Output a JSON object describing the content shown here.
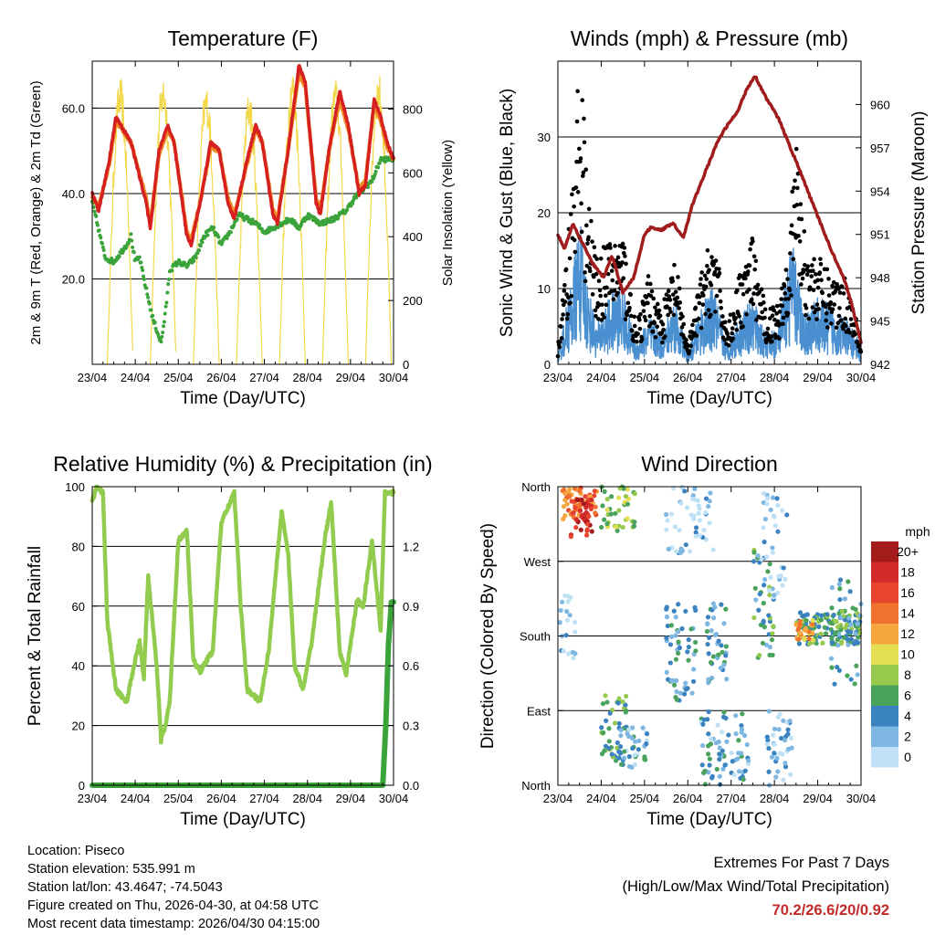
{
  "time_axis": {
    "ticks": [
      "23/04",
      "24/04",
      "25/04",
      "26/04",
      "27/04",
      "28/04",
      "29/04",
      "30/04"
    ],
    "label": "Time (Day/UTC)"
  },
  "chart_data": [
    {
      "id": "temperature",
      "type": "line",
      "title": "Temperature (F)",
      "ylabel_left": "2m & 9m T (Red, Orange) & 2m Td (Green)",
      "ylabel_right": "Solar Insolation (Yellow)",
      "xlabel": "Time (Day/UTC)",
      "xlim": [
        0,
        7
      ],
      "ylim": [
        0,
        71
      ],
      "ylim_right": [
        0,
        950
      ],
      "left_ticks": [
        {
          "v": 20,
          "label": "20.0"
        },
        {
          "v": 40,
          "label": "40.0"
        },
        {
          "v": 60,
          "label": "60.0"
        }
      ],
      "right_ticks": [
        {
          "v": 0,
          "label": "0"
        },
        {
          "v": 200,
          "label": "200"
        },
        {
          "v": 400,
          "label": "400"
        },
        {
          "v": 600,
          "label": "600"
        },
        {
          "v": 800,
          "label": "800"
        }
      ],
      "series": [
        {
          "name": "2m T",
          "color": "#d62020",
          "x": [
            0,
            0.15,
            0.4,
            0.55,
            0.9,
            1.25,
            1.35,
            1.55,
            1.75,
            1.9,
            2.2,
            2.3,
            2.55,
            2.75,
            2.95,
            3.15,
            3.3,
            3.6,
            3.8,
            3.95,
            4.2,
            4.3,
            4.55,
            4.8,
            4.95,
            5.2,
            5.3,
            5.5,
            5.75,
            5.95,
            6.2,
            6.35,
            6.55,
            6.7,
            6.85,
            7.0
          ],
          "values": [
            40,
            36,
            48,
            58,
            52,
            38,
            32,
            50,
            56,
            52,
            30,
            28,
            40,
            52,
            50,
            38,
            34,
            48,
            56,
            52,
            35,
            33,
            50,
            70,
            66,
            38,
            35,
            50,
            64,
            56,
            40,
            42,
            62,
            58,
            52,
            48
          ]
        },
        {
          "name": "9m T",
          "color": "#f08a24",
          "x": [
            0,
            0.15,
            0.4,
            0.55,
            0.9,
            1.25,
            1.35,
            1.55,
            1.75,
            1.9,
            2.2,
            2.3,
            2.55,
            2.75,
            2.95,
            3.15,
            3.3,
            3.6,
            3.8,
            3.95,
            4.2,
            4.3,
            4.55,
            4.8,
            4.95,
            5.2,
            5.3,
            5.5,
            5.75,
            5.95,
            6.2,
            6.35,
            6.55,
            6.7,
            6.85,
            7.0
          ],
          "values": [
            39,
            37,
            47,
            57,
            52,
            39,
            33,
            49,
            55,
            52,
            31,
            29,
            40,
            51,
            50,
            39,
            35,
            47,
            55,
            52,
            36,
            34,
            50,
            68,
            65,
            39,
            36,
            50,
            62,
            55,
            41,
            43,
            61,
            57,
            51,
            48
          ]
        },
        {
          "name": "2m Td",
          "color": "#3aa33a",
          "x": [
            0,
            0.3,
            0.5,
            0.8,
            0.9,
            1.0,
            1.1,
            1.2,
            1.4,
            1.5,
            1.6,
            1.7,
            1.8,
            2.0,
            2.2,
            2.4,
            2.6,
            2.8,
            3.0,
            3.2,
            3.4,
            3.6,
            3.8,
            4.0,
            4.2,
            4.4,
            4.6,
            4.8,
            5.0,
            5.3,
            5.6,
            5.9,
            6.1,
            6.3,
            6.5,
            6.7,
            6.8,
            7.0
          ],
          "values": [
            38,
            25,
            24,
            28,
            30,
            24,
            25,
            20,
            11,
            8,
            5,
            12,
            22,
            24,
            23,
            25,
            30,
            32,
            28,
            31,
            35,
            34,
            33,
            31,
            32,
            33,
            34,
            32,
            35,
            33,
            34,
            36,
            39,
            41,
            43,
            48,
            48,
            48
          ]
        },
        {
          "name": "Solar Insolation",
          "color": "#f3d84a",
          "axis": "right",
          "peaks": [
            {
              "t": 0.65,
              "v": 900
            },
            {
              "t": 1.65,
              "v": 910
            },
            {
              "t": 2.65,
              "v": 880
            },
            {
              "t": 3.65,
              "v": 860
            },
            {
              "t": 4.65,
              "v": 930
            },
            {
              "t": 5.65,
              "v": 900
            },
            {
              "t": 6.65,
              "v": 920
            }
          ]
        }
      ]
    },
    {
      "id": "winds",
      "type": "line",
      "title": "Winds (mph) & Pressure (mb)",
      "ylabel_left": "Sonic Wind & Gust (Blue, Black)",
      "ylabel_right": "Station Pressure (Maroon)",
      "xlabel": "Time (Day/UTC)",
      "xlim": [
        0,
        7
      ],
      "ylim": [
        0,
        40
      ],
      "ylim_right": [
        942,
        963
      ],
      "left_ticks": [
        {
          "v": 0,
          "label": "0"
        },
        {
          "v": 10,
          "label": "10"
        },
        {
          "v": 20,
          "label": "20"
        },
        {
          "v": 30,
          "label": "30"
        }
      ],
      "right_ticks": [
        {
          "v": 942,
          "label": "942"
        },
        {
          "v": 945,
          "label": "945"
        },
        {
          "v": 948,
          "label": "948"
        },
        {
          "v": 951,
          "label": "951"
        },
        {
          "v": 954,
          "label": "954"
        },
        {
          "v": 957,
          "label": "957"
        },
        {
          "v": 960,
          "label": "960"
        }
      ],
      "series": [
        {
          "name": "Wind",
          "color": "#4a8fd0",
          "x": [
            0,
            0.2,
            0.35,
            0.5,
            0.7,
            0.9,
            1.2,
            1.5,
            1.8,
            2.1,
            2.4,
            2.7,
            3.0,
            3.3,
            3.6,
            3.9,
            4.2,
            4.5,
            4.8,
            5.1,
            5.4,
            5.7,
            6.0,
            6.3,
            6.6,
            6.9,
            7.0
          ],
          "values": [
            1,
            6,
            10,
            15,
            8,
            4,
            7,
            8,
            2,
            5,
            3,
            7,
            1,
            6,
            8,
            2,
            5,
            7,
            3,
            4,
            13,
            5,
            7,
            6,
            5,
            3,
            1
          ]
        },
        {
          "name": "Gust",
          "color": "#000000",
          "x": [
            0,
            0.2,
            0.35,
            0.5,
            0.6,
            0.7,
            0.9,
            1.2,
            1.5,
            1.8,
            2.1,
            2.4,
            2.7,
            3.0,
            3.3,
            3.6,
            3.9,
            4.2,
            4.5,
            4.8,
            5.1,
            5.4,
            5.5,
            5.7,
            6.0,
            6.3,
            6.6,
            6.9,
            7.0
          ],
          "values": [
            2,
            12,
            22,
            35,
            28,
            18,
            12,
            14,
            15,
            4,
            10,
            6,
            12,
            2,
            10,
            15,
            4,
            10,
            14,
            6,
            7,
            18,
            27,
            14,
            12,
            10,
            10,
            6,
            2
          ]
        },
        {
          "name": "Station Pressure",
          "color": "#a01c1c",
          "axis": "right",
          "x": [
            0,
            0.15,
            0.35,
            0.55,
            0.8,
            1.05,
            1.25,
            1.5,
            1.75,
            2.0,
            2.15,
            2.4,
            2.65,
            2.9,
            3.1,
            3.4,
            3.7,
            3.9,
            4.15,
            4.35,
            4.55,
            4.8,
            5.1,
            5.3,
            5.55,
            5.9,
            6.3,
            6.6,
            6.8,
            7.0
          ],
          "values": [
            951,
            950,
            951.7,
            950.5,
            949,
            948,
            949.5,
            947,
            948,
            951,
            951.5,
            951.3,
            951.8,
            950.8,
            953,
            955.3,
            957.5,
            958.5,
            959.5,
            961,
            962,
            960.5,
            959,
            957.5,
            955.7,
            953,
            950,
            948,
            946,
            943.5
          ]
        }
      ]
    },
    {
      "id": "humidity",
      "type": "line",
      "title": "Relative Humidity (%) & Precipitation (in)",
      "ylabel_left": "Percent & Total Rainfall",
      "xlabel": "Time (Day/UTC)",
      "xlim": [
        0,
        7
      ],
      "ylim": [
        0,
        100
      ],
      "ylim_right": [
        0,
        1.5
      ],
      "left_ticks": [
        {
          "v": 0,
          "label": "0"
        },
        {
          "v": 20,
          "label": "20"
        },
        {
          "v": 40,
          "label": "40"
        },
        {
          "v": 60,
          "label": "60"
        },
        {
          "v": 80,
          "label": "80"
        },
        {
          "v": 100,
          "label": "100"
        }
      ],
      "right_ticks": [
        {
          "v": 0,
          "label": "0.0"
        },
        {
          "v": 0.3,
          "label": "0.3"
        },
        {
          "v": 0.6,
          "label": "0.6"
        },
        {
          "v": 0.9,
          "label": "0.9"
        },
        {
          "v": 1.2,
          "label": "1.2"
        }
      ],
      "series": [
        {
          "name": "Relative Humidity",
          "color": "#92cc4e",
          "x": [
            0,
            0.1,
            0.25,
            0.35,
            0.55,
            0.8,
            1.0,
            1.1,
            1.2,
            1.3,
            1.5,
            1.6,
            1.7,
            1.8,
            2.0,
            2.2,
            2.35,
            2.5,
            2.8,
            3.0,
            3.3,
            3.45,
            3.6,
            3.9,
            4.1,
            4.4,
            4.55,
            4.7,
            4.9,
            5.1,
            5.4,
            5.55,
            5.75,
            5.9,
            6.15,
            6.3,
            6.5,
            6.7,
            6.8,
            7.0
          ],
          "values": [
            95,
            100,
            98,
            55,
            32,
            28,
            42,
            48,
            36,
            70,
            40,
            15,
            20,
            28,
            82,
            85,
            42,
            38,
            45,
            88,
            98,
            60,
            32,
            28,
            45,
            92,
            78,
            40,
            32,
            48,
            82,
            95,
            45,
            37,
            62,
            60,
            82,
            52,
            98,
            98
          ]
        },
        {
          "name": "Total Precipitation",
          "color": "#3aa33a",
          "axis": "right",
          "x": [
            0,
            6.75,
            6.82,
            6.88,
            6.95,
            7.0
          ],
          "values": [
            0,
            0,
            0.3,
            0.7,
            0.92,
            0.92
          ]
        }
      ]
    },
    {
      "id": "direction",
      "type": "scatter",
      "title": "Wind Direction",
      "ylabel_left": "Direction (Colored By Speed)",
      "xlabel": "Time (Day/UTC)",
      "xlim": [
        0,
        7
      ],
      "ylim": [
        0,
        360
      ],
      "left_ticks": [
        {
          "v": 0,
          "label": "North"
        },
        {
          "v": 90,
          "label": "East"
        },
        {
          "v": 180,
          "label": "South"
        },
        {
          "v": 270,
          "label": "West"
        },
        {
          "v": 360,
          "label": "North"
        }
      ],
      "clusters": [
        {
          "t0": 0.1,
          "t1": 0.9,
          "d0": 320,
          "d1": 360,
          "speed": 14,
          "n": 70
        },
        {
          "t0": 0.3,
          "t1": 0.8,
          "d0": 295,
          "d1": 345,
          "speed": 18,
          "n": 35
        },
        {
          "t0": 1.0,
          "t1": 1.8,
          "d0": 300,
          "d1": 360,
          "speed": 8,
          "n": 40
        },
        {
          "t0": 0.0,
          "t1": 0.4,
          "d0": 150,
          "d1": 230,
          "speed": 1,
          "n": 20
        },
        {
          "t0": 1.0,
          "t1": 1.6,
          "d0": 20,
          "d1": 110,
          "speed": 6,
          "n": 45
        },
        {
          "t0": 1.4,
          "t1": 2.1,
          "d0": 20,
          "d1": 70,
          "speed": 3,
          "n": 40
        },
        {
          "t0": 2.5,
          "t1": 3.2,
          "d0": 100,
          "d1": 220,
          "speed": 4,
          "n": 55
        },
        {
          "t0": 2.5,
          "t1": 3.6,
          "d0": 280,
          "d1": 360,
          "speed": 1,
          "n": 50
        },
        {
          "t0": 3.3,
          "t1": 4.4,
          "d0": 0,
          "d1": 90,
          "speed": 3,
          "n": 75
        },
        {
          "t0": 3.4,
          "t1": 3.9,
          "d0": 120,
          "d1": 220,
          "speed": 4,
          "n": 40
        },
        {
          "t0": 4.5,
          "t1": 5.0,
          "d0": 150,
          "d1": 290,
          "speed": 5,
          "n": 40
        },
        {
          "t0": 4.7,
          "t1": 5.3,
          "d0": 220,
          "d1": 360,
          "speed": 1,
          "n": 35
        },
        {
          "t0": 4.8,
          "t1": 5.4,
          "d0": 0,
          "d1": 90,
          "speed": 2,
          "n": 40
        },
        {
          "t0": 5.5,
          "t1": 7.0,
          "d0": 170,
          "d1": 210,
          "speed": 6,
          "n": 140
        },
        {
          "t0": 5.5,
          "t1": 5.9,
          "d0": 175,
          "d1": 200,
          "speed": 12,
          "n": 30
        },
        {
          "t0": 6.3,
          "t1": 7.0,
          "d0": 120,
          "d1": 250,
          "speed": 4,
          "n": 40
        }
      ]
    }
  ],
  "colorbar": {
    "title": "mph",
    "labels": [
      "20+",
      "18",
      "16",
      "14",
      "12",
      "10",
      "8",
      "6",
      "4",
      "2",
      "0"
    ],
    "colors": [
      "#a41b1b",
      "#d42a2a",
      "#e8452f",
      "#f0722e",
      "#f6a63e",
      "#e4df52",
      "#96c94c",
      "#4aa35c",
      "#3b83c0",
      "#7db7e2",
      "#bfe1f5"
    ]
  },
  "footer": {
    "location": "Location: Piseco",
    "elevation": "Station elevation: 535.991 m",
    "latlon": "Station lat/lon: 43.4647; -74.5043",
    "created": "Figure created on Thu, 2026-04-30, at 04:58 UTC",
    "recent": "Most recent data timestamp: 2026/04/30 04:15:00"
  },
  "extremes": {
    "title": "Extremes For Past 7 Days",
    "subtitle": "(High/Low/Max Wind/Total Precipitation)",
    "values": "70.2/26.6/20/0.92"
  }
}
